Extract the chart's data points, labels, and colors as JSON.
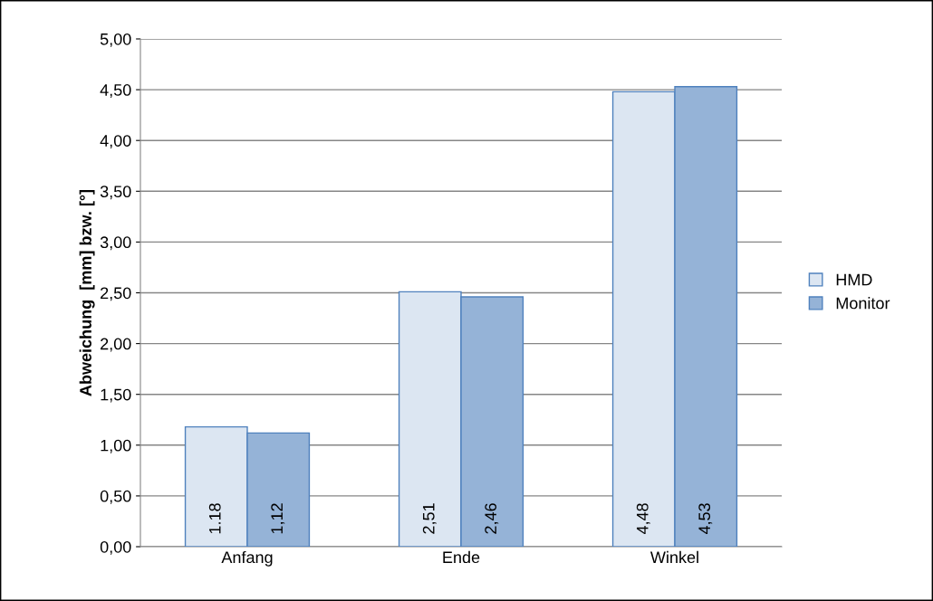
{
  "chart_data": {
    "type": "bar",
    "ylabel": "Abweichung  [mm] bzw. [°]",
    "categories": [
      "Anfang",
      "Ende",
      "Winkel"
    ],
    "series": [
      {
        "name": "HMD",
        "color": "#dce6f2",
        "values": [
          1.18,
          2.51,
          4.48
        ],
        "value_labels": [
          "1.18",
          "2,51",
          "4,48"
        ]
      },
      {
        "name": "Monitor",
        "color": "#95b3d7",
        "values": [
          1.12,
          2.46,
          4.53
        ],
        "value_labels": [
          "1,12",
          "2,46",
          "4,53"
        ]
      }
    ],
    "ylim": [
      0,
      5
    ],
    "yticks": [
      {
        "value": 0,
        "label": "0,00"
      },
      {
        "value": 0.5,
        "label": "0,50"
      },
      {
        "value": 1,
        "label": "1,00"
      },
      {
        "value": 1.5,
        "label": "1,50"
      },
      {
        "value": 2,
        "label": "2,00"
      },
      {
        "value": 2.5,
        "label": "2,50"
      },
      {
        "value": 3,
        "label": "3,00"
      },
      {
        "value": 3.5,
        "label": "3,50"
      },
      {
        "value": 4,
        "label": "4,00"
      },
      {
        "value": 4.5,
        "label": "4,50"
      },
      {
        "value": 5,
        "label": "5,00"
      }
    ],
    "grid": "y",
    "legend": "right"
  }
}
